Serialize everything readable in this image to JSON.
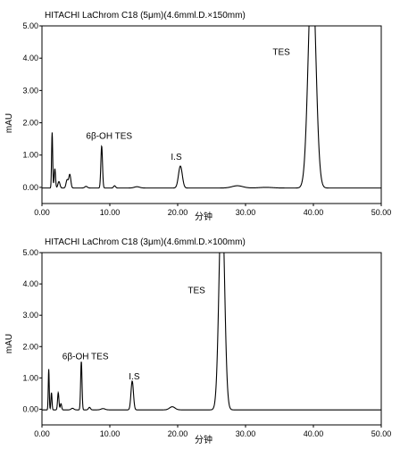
{
  "chart_data": [
    {
      "type": "line",
      "title": "HITACHI LaChrom C18 (5μm)(4.6mml.D.×150mm)",
      "xlabel": "分钟",
      "ylabel": "mAU",
      "xlim": [
        0,
        50
      ],
      "ylim": [
        -0.5,
        5
      ],
      "xticks": [
        "0.00",
        "10.00",
        "20.00",
        "30.00",
        "40.00",
        "50.00"
      ],
      "yticks": [
        "0.00",
        "1.00",
        "2.00",
        "3.00",
        "4.00",
        "5.00"
      ],
      "grid": false,
      "baseline": -0.02,
      "peaks": [
        {
          "x": 1.5,
          "h": 1.72,
          "w": 0.08
        },
        {
          "x": 1.9,
          "h": 0.6,
          "w": 0.1
        },
        {
          "x": 2.5,
          "h": 0.2,
          "w": 0.15
        },
        {
          "x": 3.7,
          "h": 0.25,
          "w": 0.15
        },
        {
          "x": 4.1,
          "h": 0.42,
          "w": 0.15
        },
        {
          "x": 6.5,
          "h": 0.05,
          "w": 0.2
        },
        {
          "x": 8.8,
          "h": 1.3,
          "w": 0.12
        },
        {
          "x": 10.7,
          "h": 0.07,
          "w": 0.15
        },
        {
          "x": 14.0,
          "h": 0.04,
          "w": 0.4
        },
        {
          "x": 20.4,
          "h": 0.68,
          "w": 0.28
        },
        {
          "x": 28.8,
          "h": 0.07,
          "w": 0.8
        },
        {
          "x": 33.0,
          "h": 0.02,
          "w": 1.0
        },
        {
          "x": 39.8,
          "h": 7.0,
          "w": 0.55
        }
      ],
      "annotations": [
        {
          "text": "6β-OH TES",
          "x": 6.5,
          "y": 1.5
        },
        {
          "text": "I.S",
          "x": 19.0,
          "y": 0.85
        },
        {
          "text": "TES",
          "x": 34.0,
          "y": 4.1
        }
      ]
    },
    {
      "type": "line",
      "title": "HITACHI LaChrom C18 (3μm)(4.6mml.D.×100mm)",
      "xlabel": "分钟",
      "ylabel": "mAU",
      "xlim": [
        0,
        50
      ],
      "ylim": [
        -0.5,
        5
      ],
      "xticks": [
        "0.00",
        "10.00",
        "20.00",
        "30.00",
        "40.00",
        "50.00"
      ],
      "yticks": [
        "0.00",
        "1.00",
        "2.00",
        "3.00",
        "4.00",
        "5.00"
      ],
      "grid": false,
      "baseline": -0.02,
      "peaks": [
        {
          "x": 1.0,
          "h": 1.3,
          "w": 0.07
        },
        {
          "x": 1.4,
          "h": 0.55,
          "w": 0.08
        },
        {
          "x": 2.4,
          "h": 0.55,
          "w": 0.1
        },
        {
          "x": 2.8,
          "h": 0.2,
          "w": 0.1
        },
        {
          "x": 4.5,
          "h": 0.05,
          "w": 0.2
        },
        {
          "x": 5.8,
          "h": 1.55,
          "w": 0.1
        },
        {
          "x": 7.0,
          "h": 0.08,
          "w": 0.15
        },
        {
          "x": 9.0,
          "h": 0.04,
          "w": 0.3
        },
        {
          "x": 13.3,
          "h": 0.92,
          "w": 0.18
        },
        {
          "x": 19.2,
          "h": 0.1,
          "w": 0.4
        },
        {
          "x": 26.5,
          "h": 7.0,
          "w": 0.4
        }
      ],
      "annotations": [
        {
          "text": "6β-OH TES",
          "x": 3.0,
          "y": 1.6
        },
        {
          "text": "I.S",
          "x": 12.8,
          "y": 0.95
        },
        {
          "text": "TES",
          "x": 21.5,
          "y": 3.7
        }
      ]
    }
  ]
}
